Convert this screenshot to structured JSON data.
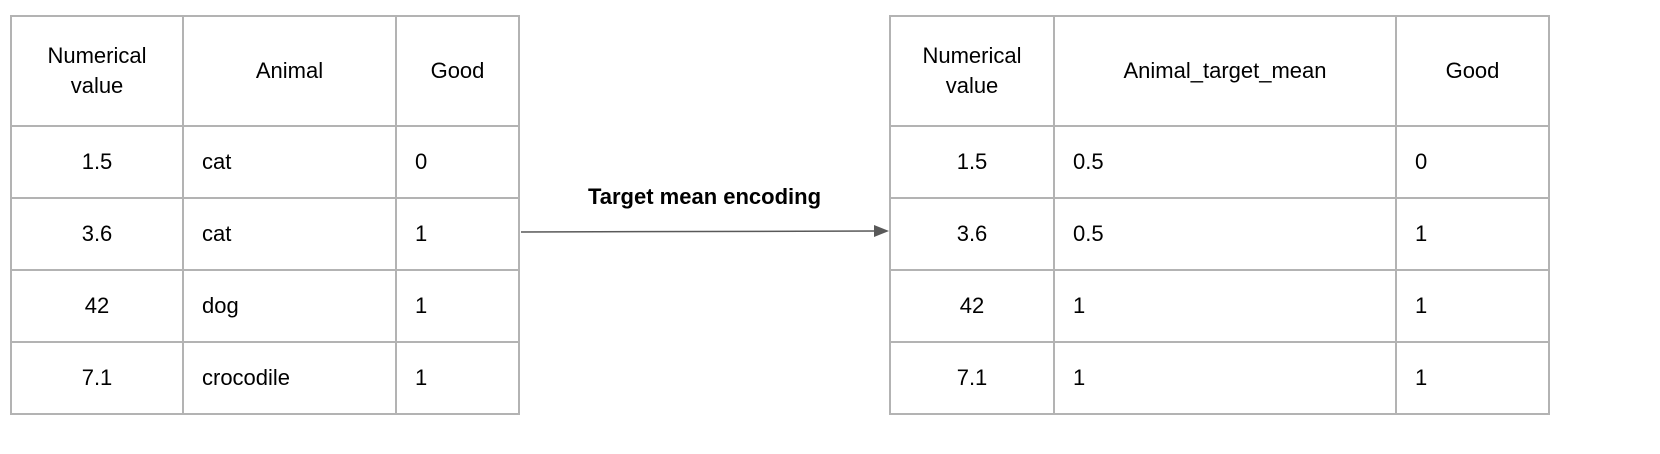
{
  "left_table": {
    "headers": [
      "Numerical value",
      "Animal",
      "Good"
    ],
    "rows": [
      [
        "1.5",
        "cat",
        "0"
      ],
      [
        "3.6",
        "cat",
        "1"
      ],
      [
        "42",
        "dog",
        "1"
      ],
      [
        "7.1",
        "crocodile",
        "1"
      ]
    ]
  },
  "arrow": {
    "label": "Target mean encoding",
    "color": "#595959"
  },
  "right_table": {
    "headers": [
      "Numerical value",
      "Animal_target_mean",
      "Good"
    ],
    "rows": [
      [
        "1.5",
        "0.5",
        "0"
      ],
      [
        "3.6",
        "0.5",
        "1"
      ],
      [
        "42",
        "1",
        "1"
      ],
      [
        "7.1",
        "1",
        "1"
      ]
    ]
  }
}
